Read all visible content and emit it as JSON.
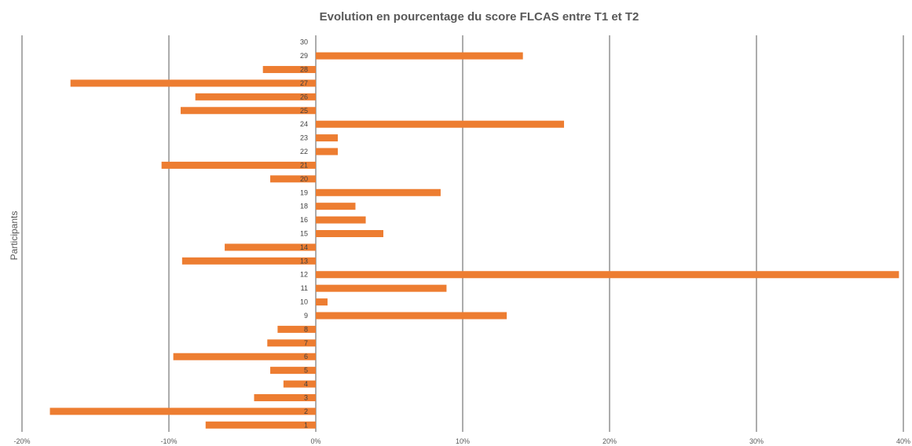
{
  "chart_data": {
    "type": "bar",
    "orientation": "horizontal",
    "title": "Evolution en pourcentage du score FLCAS entre T1 et T2",
    "xlabel": "",
    "ylabel": "Participants",
    "xlim": [
      -20,
      40
    ],
    "x_ticks": [
      "-20%",
      "-10%",
      "0%",
      "10%",
      "20%",
      "30%",
      "40%"
    ],
    "grid": "vertical",
    "legend": "none",
    "bar_color": "#ED7D31",
    "categories": [
      "1",
      "2",
      "3",
      "4",
      "5",
      "6",
      "7",
      "8",
      "9",
      "10",
      "11",
      "12",
      "13",
      "14",
      "15",
      "16",
      "18",
      "19",
      "20",
      "21",
      "22",
      "23",
      "24",
      "25",
      "26",
      "27",
      "28",
      "29",
      "30"
    ],
    "values": [
      -7.5,
      -18.1,
      -4.2,
      -2.2,
      -3.1,
      -9.7,
      -3.3,
      -2.6,
      13.0,
      0.8,
      8.9,
      39.7,
      -9.1,
      -6.2,
      4.6,
      3.4,
      2.7,
      8.5,
      -3.1,
      -10.5,
      1.5,
      1.5,
      16.9,
      -9.2,
      -8.2,
      -16.7,
      -3.6,
      14.1,
      0
    ]
  }
}
